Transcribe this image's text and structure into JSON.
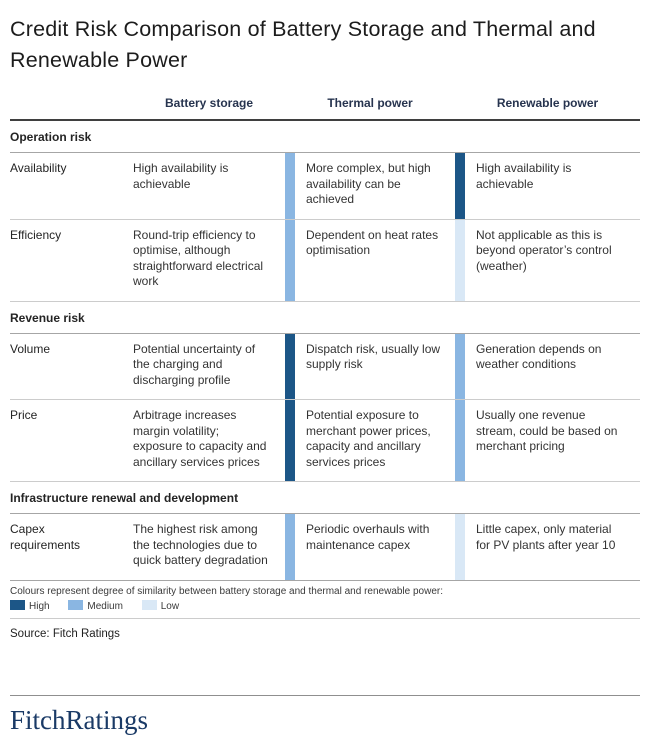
{
  "chart_data": {
    "type": "table",
    "title": "Credit Risk Comparison of Battery Storage and Thermal and Renewable Power",
    "columns": [
      "Battery storage",
      "Thermal power",
      "Renewable power"
    ],
    "sections": [
      {
        "label": "Operation risk",
        "rows": [
          {
            "label": "Availability",
            "battery": "High availability is achievable",
            "thermal": "More complex, but high availability can be achieved",
            "thermal_similarity": "medium",
            "renewable": "High availability is achievable",
            "renewable_similarity": "high"
          },
          {
            "label": "Efficiency",
            "battery": "Round-trip efficiency to optimise, although straightforward electrical work",
            "thermal": "Dependent on heat rates optimisation",
            "thermal_similarity": "medium",
            "renewable": "Not applicable as this is beyond operator’s control (weather)",
            "renewable_similarity": "low"
          }
        ]
      },
      {
        "label": "Revenue risk",
        "rows": [
          {
            "label": "Volume",
            "battery": "Potential uncertainty of the charging and discharging profile",
            "thermal": "Dispatch risk, usually low supply risk",
            "thermal_similarity": "high",
            "renewable": "Generation depends on weather conditions",
            "renewable_similarity": "medium"
          },
          {
            "label": "Price",
            "battery": "Arbitrage increases margin volatility; exposure to capacity and ancillary services prices",
            "thermal": "Potential exposure to merchant power prices, capacity and ancillary services prices",
            "thermal_similarity": "high",
            "renewable": "Usually one revenue stream, could be based on merchant pricing",
            "renewable_similarity": "medium"
          }
        ]
      },
      {
        "label": "Infrastructure renewal and development",
        "rows": [
          {
            "label": "Capex requirements",
            "battery": "The highest risk among the technologies due to quick battery degradation",
            "thermal": "Periodic overhauls with maintenance capex",
            "thermal_similarity": "medium",
            "renewable": "Little capex, only material for PV plants after year 10",
            "renewable_similarity": "low"
          }
        ]
      }
    ],
    "legend": {
      "caption": "Colours represent degree of similarity between battery storage and thermal and renewable power:",
      "items": [
        {
          "label": "High",
          "level": "high"
        },
        {
          "label": "Medium",
          "level": "medium"
        },
        {
          "label": "Low",
          "level": "low"
        }
      ]
    }
  },
  "colors": {
    "high": "#1c5687",
    "medium": "#8ab6e2",
    "low": "#d9e8f6",
    "navy": "#1a3a66"
  },
  "source": "Source: Fitch Ratings",
  "logo": "FitchRatings"
}
